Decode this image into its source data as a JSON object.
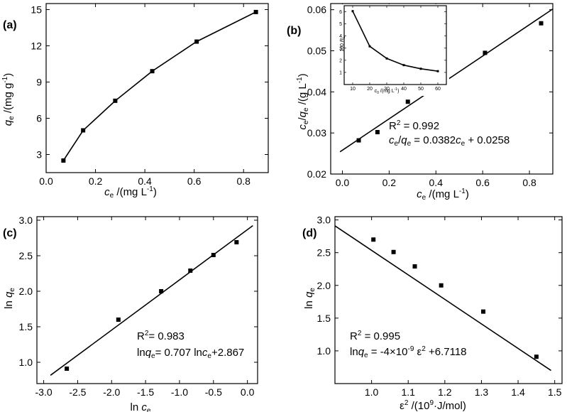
{
  "chart_data": [
    {
      "panel": "(a)",
      "type": "line",
      "xlabel": "ce /(mg L-1)",
      "ylabel": "qe /(mg g-1)",
      "xlim": [
        0.0,
        0.9
      ],
      "ylim": [
        1.5,
        15.5
      ],
      "x_ticks": [
        0.0,
        0.2,
        0.4,
        0.6,
        0.8
      ],
      "y_ticks": [
        3,
        6,
        9,
        12,
        15
      ],
      "grid": false,
      "series": [
        {
          "x": [
            0.07,
            0.15,
            0.28,
            0.43,
            0.61,
            0.85
          ],
          "y": [
            2.5,
            5.0,
            7.45,
            9.9,
            12.35,
            14.8
          ]
        }
      ],
      "annotations": []
    },
    {
      "panel": "(b)",
      "type": "scatter",
      "xlabel": "ce /(mg L-1)",
      "ylabel": "ce/qe /(g L-1)",
      "xlim": [
        -0.05,
        0.9
      ],
      "ylim": [
        0.02,
        0.0615
      ],
      "x_ticks": [
        0.0,
        0.2,
        0.4,
        0.6,
        0.8
      ],
      "y_ticks": [
        0.02,
        0.03,
        0.04,
        0.05,
        0.06
      ],
      "grid": false,
      "series": [
        {
          "x": [
            0.07,
            0.15,
            0.28,
            0.43,
            0.61,
            0.85
          ],
          "y": [
            0.0282,
            0.0302,
            0.0376,
            0.0435,
            0.0495,
            0.0567
          ]
        }
      ],
      "fit": {
        "slope": 0.0382,
        "intercept": 0.0258,
        "x_range": [
          -0.01,
          0.9
        ]
      },
      "annotations": [
        "R2 = 0.992",
        "ce/qe = 0.0382ce + 0.0258"
      ],
      "inset": {
        "type": "line",
        "xlabel": "c0 /(mg L-1)",
        "ylabel": "100 RL",
        "xlim": [
          5,
          65
        ],
        "ylim": [
          0,
          6.5
        ],
        "x_ticks": [
          10,
          20,
          30,
          40,
          50,
          60
        ],
        "y_ticks": [
          1,
          2,
          3,
          4,
          5,
          6
        ],
        "series": [
          {
            "x": [
              10,
              20,
              30,
              40,
              50,
              60
            ],
            "y": [
              6.05,
              3.15,
              2.15,
              1.6,
              1.3,
              1.1
            ]
          }
        ]
      }
    },
    {
      "panel": "(c)",
      "type": "scatter",
      "xlabel": "ln ce",
      "ylabel": "ln qe",
      "xlim": [
        -3.1,
        0.15
      ],
      "ylim": [
        0.7,
        3.05
      ],
      "x_ticks": [
        -3.0,
        -2.5,
        -2.0,
        -1.5,
        -1.0,
        -0.5,
        0.0
      ],
      "y_ticks": [
        1.0,
        1.5,
        2.0,
        2.5,
        3.0
      ],
      "grid": false,
      "series": [
        {
          "x": [
            -2.66,
            -1.9,
            -1.27,
            -0.84,
            -0.5,
            -0.16
          ],
          "y": [
            0.91,
            1.6,
            2.0,
            2.29,
            2.51,
            2.69
          ]
        }
      ],
      "fit": {
        "slope": 0.707,
        "intercept": 2.867,
        "x_range": [
          -2.9,
          0.08
        ]
      },
      "annotations": [
        "R2= 0.983",
        "lnqe= 0.707 lnce+2.867"
      ]
    },
    {
      "panel": "(d)",
      "type": "scatter",
      "xlabel": "ε2 /(109·J/mol)",
      "ylabel": "ln qe",
      "xlim": [
        0.9,
        1.52
      ],
      "ylim": [
        0.5,
        3.05
      ],
      "x_ticks": [
        1.0,
        1.1,
        1.2,
        1.3,
        1.4,
        1.5
      ],
      "y_ticks": [
        1.0,
        1.5,
        2.0,
        2.5,
        3.0
      ],
      "grid": false,
      "series": [
        {
          "x": [
            1.005,
            1.06,
            1.118,
            1.19,
            1.305,
            1.45
          ],
          "y": [
            2.7,
            2.51,
            2.29,
            2.0,
            1.6,
            0.91
          ]
        }
      ],
      "fit": {
        "x_range": [
          0.9,
          1.49
        ],
        "y_at_start": 2.91,
        "y_at_end": 0.7
      },
      "annotations": [
        "R2 = 0.995",
        "lnqe = -4×10-9 ε2 +6.7118"
      ]
    }
  ]
}
